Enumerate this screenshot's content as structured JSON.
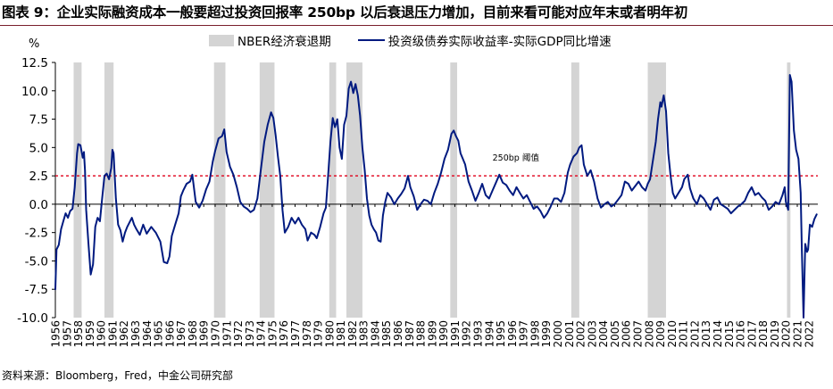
{
  "title": "图表 9：企业实际融资成本一般要超过投资回报率 250bp 以后衰退压力增加，目前来看可能对应年末或者明年初",
  "source": "资料来源：Bloomberg，Fred，中金公司研究部",
  "chart_data": {
    "type": "line",
    "unit_label": "%",
    "ylim": [
      -10,
      12.5
    ],
    "yticks": [
      12.5,
      10.0,
      7.5,
      5.0,
      2.5,
      0.0,
      -2.5,
      -5.0,
      -7.5,
      -10.0
    ],
    "ytick_labels": [
      "12.5",
      "10.0",
      "7.5",
      "5.0",
      "2.5",
      "0.0",
      "-2.5",
      "-5.0",
      "-7.5",
      "-10.0"
    ],
    "xlim": [
      1956,
      2022.8
    ],
    "xtick_labels": [
      "1956",
      "1957",
      "1958",
      "1959",
      "1960",
      "1961",
      "1962",
      "1963",
      "1964",
      "1965",
      "1966",
      "1967",
      "1968",
      "1969",
      "1970",
      "1971",
      "1972",
      "1973",
      "1974",
      "1975",
      "1976",
      "1977",
      "1978",
      "1979",
      "1980",
      "1981",
      "1982",
      "1983",
      "1984",
      "1985",
      "1986",
      "1987",
      "1988",
      "1989",
      "1990",
      "1991",
      "1992",
      "1993",
      "1994",
      "1995",
      "1996",
      "1997",
      "1998",
      "1999",
      "2000",
      "2001",
      "2002",
      "2003",
      "2004",
      "2005",
      "2006",
      "2007",
      "2008",
      "2009",
      "2010",
      "2011",
      "2012",
      "2013",
      "2014",
      "2015",
      "2016",
      "2017",
      "2018",
      "2019",
      "2020",
      "2021",
      "2022"
    ],
    "legend": {
      "recession_label": "NBER经济衰退期",
      "series_label": "投资级债券实际收益率-实际GDP同比增速"
    },
    "recession_periods": [
      [
        1957.6,
        1958.3
      ],
      [
        1960.3,
        1961.1
      ],
      [
        1969.9,
        1970.9
      ],
      [
        1973.9,
        1975.2
      ],
      [
        1980.0,
        1980.6
      ],
      [
        1981.5,
        1982.9
      ],
      [
        1990.6,
        1991.2
      ],
      [
        2001.2,
        2001.9
      ],
      [
        2007.9,
        2009.5
      ],
      [
        2020.1,
        2020.4
      ]
    ],
    "threshold": {
      "value": 2.5,
      "label": "250bp 阈值"
    },
    "series": [
      {
        "name": "投资级债券实际收益率-实际GDP同比增速",
        "color": "#001a80",
        "points": [
          [
            1956.0,
            -7.5
          ],
          [
            1956.1,
            -4.0
          ],
          [
            1956.3,
            -3.6
          ],
          [
            1956.5,
            -2.2
          ],
          [
            1956.7,
            -1.5
          ],
          [
            1956.9,
            -0.8
          ],
          [
            1957.1,
            -1.2
          ],
          [
            1957.3,
            -0.6
          ],
          [
            1957.5,
            -0.4
          ],
          [
            1957.7,
            1.5
          ],
          [
            1957.9,
            4.5
          ],
          [
            1958.0,
            5.3
          ],
          [
            1958.2,
            5.2
          ],
          [
            1958.4,
            4.1
          ],
          [
            1958.5,
            4.6
          ],
          [
            1958.6,
            3.0
          ],
          [
            1958.7,
            -0.5
          ],
          [
            1958.9,
            -3.5
          ],
          [
            1959.1,
            -6.2
          ],
          [
            1959.3,
            -5.3
          ],
          [
            1959.5,
            -2.0
          ],
          [
            1959.7,
            -1.2
          ],
          [
            1959.9,
            -1.5
          ],
          [
            1960.1,
            0.5
          ],
          [
            1960.3,
            2.5
          ],
          [
            1960.5,
            2.7
          ],
          [
            1960.7,
            2.2
          ],
          [
            1960.9,
            3.2
          ],
          [
            1961.0,
            4.8
          ],
          [
            1961.1,
            4.5
          ],
          [
            1961.3,
            0.5
          ],
          [
            1961.5,
            -1.8
          ],
          [
            1961.7,
            -2.3
          ],
          [
            1961.9,
            -3.3
          ],
          [
            1962.1,
            -2.5
          ],
          [
            1962.3,
            -2.0
          ],
          [
            1962.5,
            -1.6
          ],
          [
            1962.7,
            -1.2
          ],
          [
            1962.9,
            -1.8
          ],
          [
            1963.1,
            -2.2
          ],
          [
            1963.4,
            -2.7
          ],
          [
            1963.7,
            -1.8
          ],
          [
            1964.0,
            -2.6
          ],
          [
            1964.4,
            -2.0
          ],
          [
            1964.8,
            -2.5
          ],
          [
            1965.2,
            -3.3
          ],
          [
            1965.5,
            -5.1
          ],
          [
            1965.8,
            -5.2
          ],
          [
            1966.0,
            -4.6
          ],
          [
            1966.2,
            -2.8
          ],
          [
            1966.5,
            -1.8
          ],
          [
            1966.8,
            -0.8
          ],
          [
            1967.0,
            0.7
          ],
          [
            1967.2,
            1.2
          ],
          [
            1967.5,
            1.8
          ],
          [
            1967.8,
            2.0
          ],
          [
            1968.0,
            2.6
          ],
          [
            1968.3,
            0.2
          ],
          [
            1968.6,
            -0.3
          ],
          [
            1968.9,
            0.3
          ],
          [
            1969.2,
            1.3
          ],
          [
            1969.5,
            2.0
          ],
          [
            1969.8,
            3.8
          ],
          [
            1970.0,
            4.7
          ],
          [
            1970.3,
            5.8
          ],
          [
            1970.6,
            6.0
          ],
          [
            1970.8,
            6.6
          ],
          [
            1971.0,
            4.6
          ],
          [
            1971.3,
            3.3
          ],
          [
            1971.6,
            2.6
          ],
          [
            1971.9,
            1.5
          ],
          [
            1972.2,
            0.2
          ],
          [
            1972.5,
            -0.2
          ],
          [
            1972.8,
            -0.4
          ],
          [
            1973.1,
            -0.7
          ],
          [
            1973.4,
            -0.5
          ],
          [
            1973.7,
            0.5
          ],
          [
            1974.0,
            3.0
          ],
          [
            1974.3,
            5.5
          ],
          [
            1974.6,
            7.0
          ],
          [
            1974.9,
            8.1
          ],
          [
            1975.1,
            7.6
          ],
          [
            1975.3,
            6.1
          ],
          [
            1975.5,
            4.2
          ],
          [
            1975.7,
            2.5
          ],
          [
            1975.9,
            -0.5
          ],
          [
            1976.1,
            -2.5
          ],
          [
            1976.4,
            -2.0
          ],
          [
            1976.7,
            -1.2
          ],
          [
            1977.0,
            -1.7
          ],
          [
            1977.3,
            -1.2
          ],
          [
            1977.6,
            -1.8
          ],
          [
            1977.9,
            -2.2
          ],
          [
            1978.1,
            -3.2
          ],
          [
            1978.4,
            -2.5
          ],
          [
            1978.7,
            -2.7
          ],
          [
            1978.9,
            -3.0
          ],
          [
            1979.2,
            -2.0
          ],
          [
            1979.5,
            -0.8
          ],
          [
            1979.7,
            -0.3
          ],
          [
            1979.9,
            2.5
          ],
          [
            1980.1,
            5.5
          ],
          [
            1980.3,
            7.6
          ],
          [
            1980.5,
            6.8
          ],
          [
            1980.7,
            7.5
          ],
          [
            1980.9,
            5.0
          ],
          [
            1981.1,
            4.0
          ],
          [
            1981.3,
            7.0
          ],
          [
            1981.5,
            7.8
          ],
          [
            1981.7,
            10.2
          ],
          [
            1981.9,
            10.8
          ],
          [
            1982.1,
            9.8
          ],
          [
            1982.3,
            10.6
          ],
          [
            1982.5,
            9.6
          ],
          [
            1982.7,
            7.8
          ],
          [
            1982.9,
            5.0
          ],
          [
            1983.1,
            3.0
          ],
          [
            1983.3,
            0.5
          ],
          [
            1983.5,
            -1.0
          ],
          [
            1983.7,
            -1.8
          ],
          [
            1983.9,
            -2.2
          ],
          [
            1984.1,
            -2.5
          ],
          [
            1984.3,
            -3.2
          ],
          [
            1984.5,
            -3.3
          ],
          [
            1984.7,
            -1.0
          ],
          [
            1984.9,
            0.2
          ],
          [
            1985.1,
            1.0
          ],
          [
            1985.4,
            0.6
          ],
          [
            1985.7,
            0.0
          ],
          [
            1986.0,
            0.5
          ],
          [
            1986.3,
            0.9
          ],
          [
            1986.6,
            1.4
          ],
          [
            1986.9,
            2.5
          ],
          [
            1987.1,
            1.5
          ],
          [
            1987.4,
            0.7
          ],
          [
            1987.7,
            -0.5
          ],
          [
            1988.0,
            0.0
          ],
          [
            1988.3,
            0.4
          ],
          [
            1988.6,
            0.3
          ],
          [
            1988.9,
            0.0
          ],
          [
            1989.2,
            1.0
          ],
          [
            1989.5,
            1.8
          ],
          [
            1989.8,
            2.8
          ],
          [
            1990.1,
            4.0
          ],
          [
            1990.4,
            4.8
          ],
          [
            1990.7,
            6.2
          ],
          [
            1990.9,
            6.5
          ],
          [
            1991.1,
            6.0
          ],
          [
            1991.3,
            5.6
          ],
          [
            1991.5,
            4.5
          ],
          [
            1991.7,
            4.0
          ],
          [
            1991.9,
            3.5
          ],
          [
            1992.2,
            2.0
          ],
          [
            1992.5,
            1.2
          ],
          [
            1992.8,
            0.3
          ],
          [
            1993.1,
            1.0
          ],
          [
            1993.4,
            1.8
          ],
          [
            1993.7,
            0.8
          ],
          [
            1994.0,
            0.5
          ],
          [
            1994.3,
            1.2
          ],
          [
            1994.6,
            1.9
          ],
          [
            1994.9,
            2.6
          ],
          [
            1995.2,
            1.9
          ],
          [
            1995.5,
            1.7
          ],
          [
            1995.8,
            1.2
          ],
          [
            1996.1,
            0.8
          ],
          [
            1996.4,
            1.5
          ],
          [
            1996.7,
            1.0
          ],
          [
            1997.0,
            0.5
          ],
          [
            1997.3,
            0.8
          ],
          [
            1997.6,
            0.2
          ],
          [
            1997.9,
            -0.4
          ],
          [
            1998.2,
            -0.2
          ],
          [
            1998.5,
            -0.6
          ],
          [
            1998.8,
            -1.2
          ],
          [
            1999.1,
            -0.8
          ],
          [
            1999.4,
            -0.2
          ],
          [
            1999.7,
            0.5
          ],
          [
            2000.0,
            0.5
          ],
          [
            2000.3,
            0.2
          ],
          [
            2000.6,
            1.0
          ],
          [
            2000.9,
            2.8
          ],
          [
            2001.1,
            3.5
          ],
          [
            2001.4,
            4.2
          ],
          [
            2001.7,
            4.5
          ],
          [
            2001.9,
            5.0
          ],
          [
            2002.1,
            5.2
          ],
          [
            2002.3,
            3.5
          ],
          [
            2002.6,
            2.5
          ],
          [
            2002.9,
            3.0
          ],
          [
            2003.2,
            2.0
          ],
          [
            2003.5,
            0.5
          ],
          [
            2003.8,
            -0.3
          ],
          [
            2004.1,
            0.0
          ],
          [
            2004.4,
            0.2
          ],
          [
            2004.7,
            -0.2
          ],
          [
            2005.0,
            0.0
          ],
          [
            2005.3,
            0.4
          ],
          [
            2005.6,
            0.8
          ],
          [
            2005.9,
            2.0
          ],
          [
            2006.2,
            1.8
          ],
          [
            2006.5,
            1.2
          ],
          [
            2006.8,
            1.6
          ],
          [
            2007.1,
            2.0
          ],
          [
            2007.4,
            1.5
          ],
          [
            2007.7,
            1.2
          ],
          [
            2007.9,
            1.8
          ],
          [
            2008.1,
            2.2
          ],
          [
            2008.3,
            3.5
          ],
          [
            2008.6,
            5.5
          ],
          [
            2008.8,
            7.5
          ],
          [
            2009.0,
            9.0
          ],
          [
            2009.1,
            8.6
          ],
          [
            2009.3,
            9.6
          ],
          [
            2009.5,
            8.2
          ],
          [
            2009.7,
            4.5
          ],
          [
            2009.9,
            2.5
          ],
          [
            2010.1,
            1.0
          ],
          [
            2010.3,
            0.5
          ],
          [
            2010.6,
            1.0
          ],
          [
            2010.9,
            1.5
          ],
          [
            2011.1,
            2.2
          ],
          [
            2011.4,
            2.6
          ],
          [
            2011.6,
            1.4
          ],
          [
            2011.9,
            0.5
          ],
          [
            2012.2,
            0.0
          ],
          [
            2012.5,
            0.8
          ],
          [
            2012.8,
            0.5
          ],
          [
            2013.1,
            0.0
          ],
          [
            2013.4,
            -0.5
          ],
          [
            2013.7,
            0.4
          ],
          [
            2014.0,
            0.6
          ],
          [
            2014.3,
            0.0
          ],
          [
            2014.6,
            -0.2
          ],
          [
            2014.9,
            -0.4
          ],
          [
            2015.2,
            -0.8
          ],
          [
            2015.5,
            -0.5
          ],
          [
            2015.8,
            -0.2
          ],
          [
            2016.1,
            0.0
          ],
          [
            2016.4,
            0.3
          ],
          [
            2016.7,
            1.0
          ],
          [
            2017.0,
            1.5
          ],
          [
            2017.3,
            0.8
          ],
          [
            2017.6,
            1.0
          ],
          [
            2017.9,
            0.6
          ],
          [
            2018.2,
            0.3
          ],
          [
            2018.5,
            -0.5
          ],
          [
            2018.8,
            -0.2
          ],
          [
            2019.1,
            0.2
          ],
          [
            2019.4,
            0.0
          ],
          [
            2019.7,
            0.8
          ],
          [
            2019.9,
            1.5
          ],
          [
            2020.0,
            0.2
          ],
          [
            2020.2,
            -0.5
          ],
          [
            2020.35,
            11.4
          ],
          [
            2020.5,
            10.8
          ],
          [
            2020.7,
            6.5
          ],
          [
            2020.9,
            4.8
          ],
          [
            2021.1,
            4.0
          ],
          [
            2021.3,
            1.0
          ],
          [
            2021.4,
            -4.0
          ],
          [
            2021.55,
            -10.0
          ],
          [
            2021.7,
            -3.5
          ],
          [
            2021.85,
            -4.2
          ],
          [
            2021.95,
            -4.0
          ],
          [
            2022.1,
            -1.8
          ],
          [
            2022.3,
            -2.0
          ],
          [
            2022.5,
            -1.3
          ],
          [
            2022.7,
            -0.9
          ]
        ]
      }
    ]
  }
}
